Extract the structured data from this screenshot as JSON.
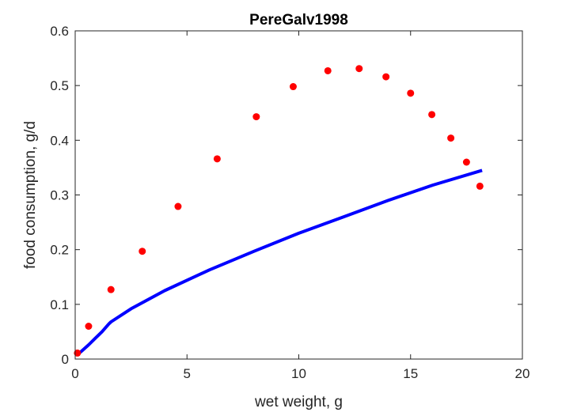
{
  "chart_data": {
    "type": "scatter",
    "title": "PereGalv1998",
    "xlabel": "wet weight, g",
    "ylabel": "food consumption, g/d",
    "xlim": [
      0,
      20
    ],
    "ylim": [
      0,
      0.6
    ],
    "xticks": [
      0,
      5,
      10,
      15,
      20
    ],
    "yticks": [
      0,
      0.1,
      0.2,
      0.3,
      0.4,
      0.5,
      0.6
    ],
    "xtick_labels": [
      "0",
      "5",
      "10",
      "15",
      "20"
    ],
    "ytick_labels": [
      "0",
      "0.1",
      "0.2",
      "0.3",
      "0.4",
      "0.5",
      "0.6"
    ],
    "grid": false,
    "box": true,
    "series": [
      {
        "kind": "scatter",
        "color": "#ff0000",
        "marker": "circle",
        "points": [
          {
            "x": 0.1,
            "y": 0.011
          },
          {
            "x": 0.6,
            "y": 0.06
          },
          {
            "x": 1.6,
            "y": 0.127
          },
          {
            "x": 3.0,
            "y": 0.197
          },
          {
            "x": 4.6,
            "y": 0.279
          },
          {
            "x": 6.35,
            "y": 0.366
          },
          {
            "x": 8.1,
            "y": 0.443
          },
          {
            "x": 9.75,
            "y": 0.498
          },
          {
            "x": 11.3,
            "y": 0.527
          },
          {
            "x": 12.7,
            "y": 0.531
          },
          {
            "x": 13.9,
            "y": 0.516
          },
          {
            "x": 15.0,
            "y": 0.486
          },
          {
            "x": 15.95,
            "y": 0.447
          },
          {
            "x": 16.8,
            "y": 0.404
          },
          {
            "x": 17.5,
            "y": 0.36
          },
          {
            "x": 18.1,
            "y": 0.316
          }
        ]
      },
      {
        "kind": "line",
        "color": "#0000ff",
        "points": [
          {
            "x": 0.1,
            "y": 0.008
          },
          {
            "x": 0.3,
            "y": 0.015
          },
          {
            "x": 0.6,
            "y": 0.026
          },
          {
            "x": 0.9,
            "y": 0.038
          },
          {
            "x": 1.2,
            "y": 0.05
          },
          {
            "x": 1.5,
            "y": 0.064
          },
          {
            "x": 1.6,
            "y": 0.068
          },
          {
            "x": 2.5,
            "y": 0.092
          },
          {
            "x": 4.0,
            "y": 0.125
          },
          {
            "x": 6.0,
            "y": 0.163
          },
          {
            "x": 8.0,
            "y": 0.197
          },
          {
            "x": 10.0,
            "y": 0.23
          },
          {
            "x": 12.0,
            "y": 0.26
          },
          {
            "x": 14.0,
            "y": 0.29
          },
          {
            "x": 16.0,
            "y": 0.318
          },
          {
            "x": 18.2,
            "y": 0.345
          }
        ]
      }
    ]
  }
}
